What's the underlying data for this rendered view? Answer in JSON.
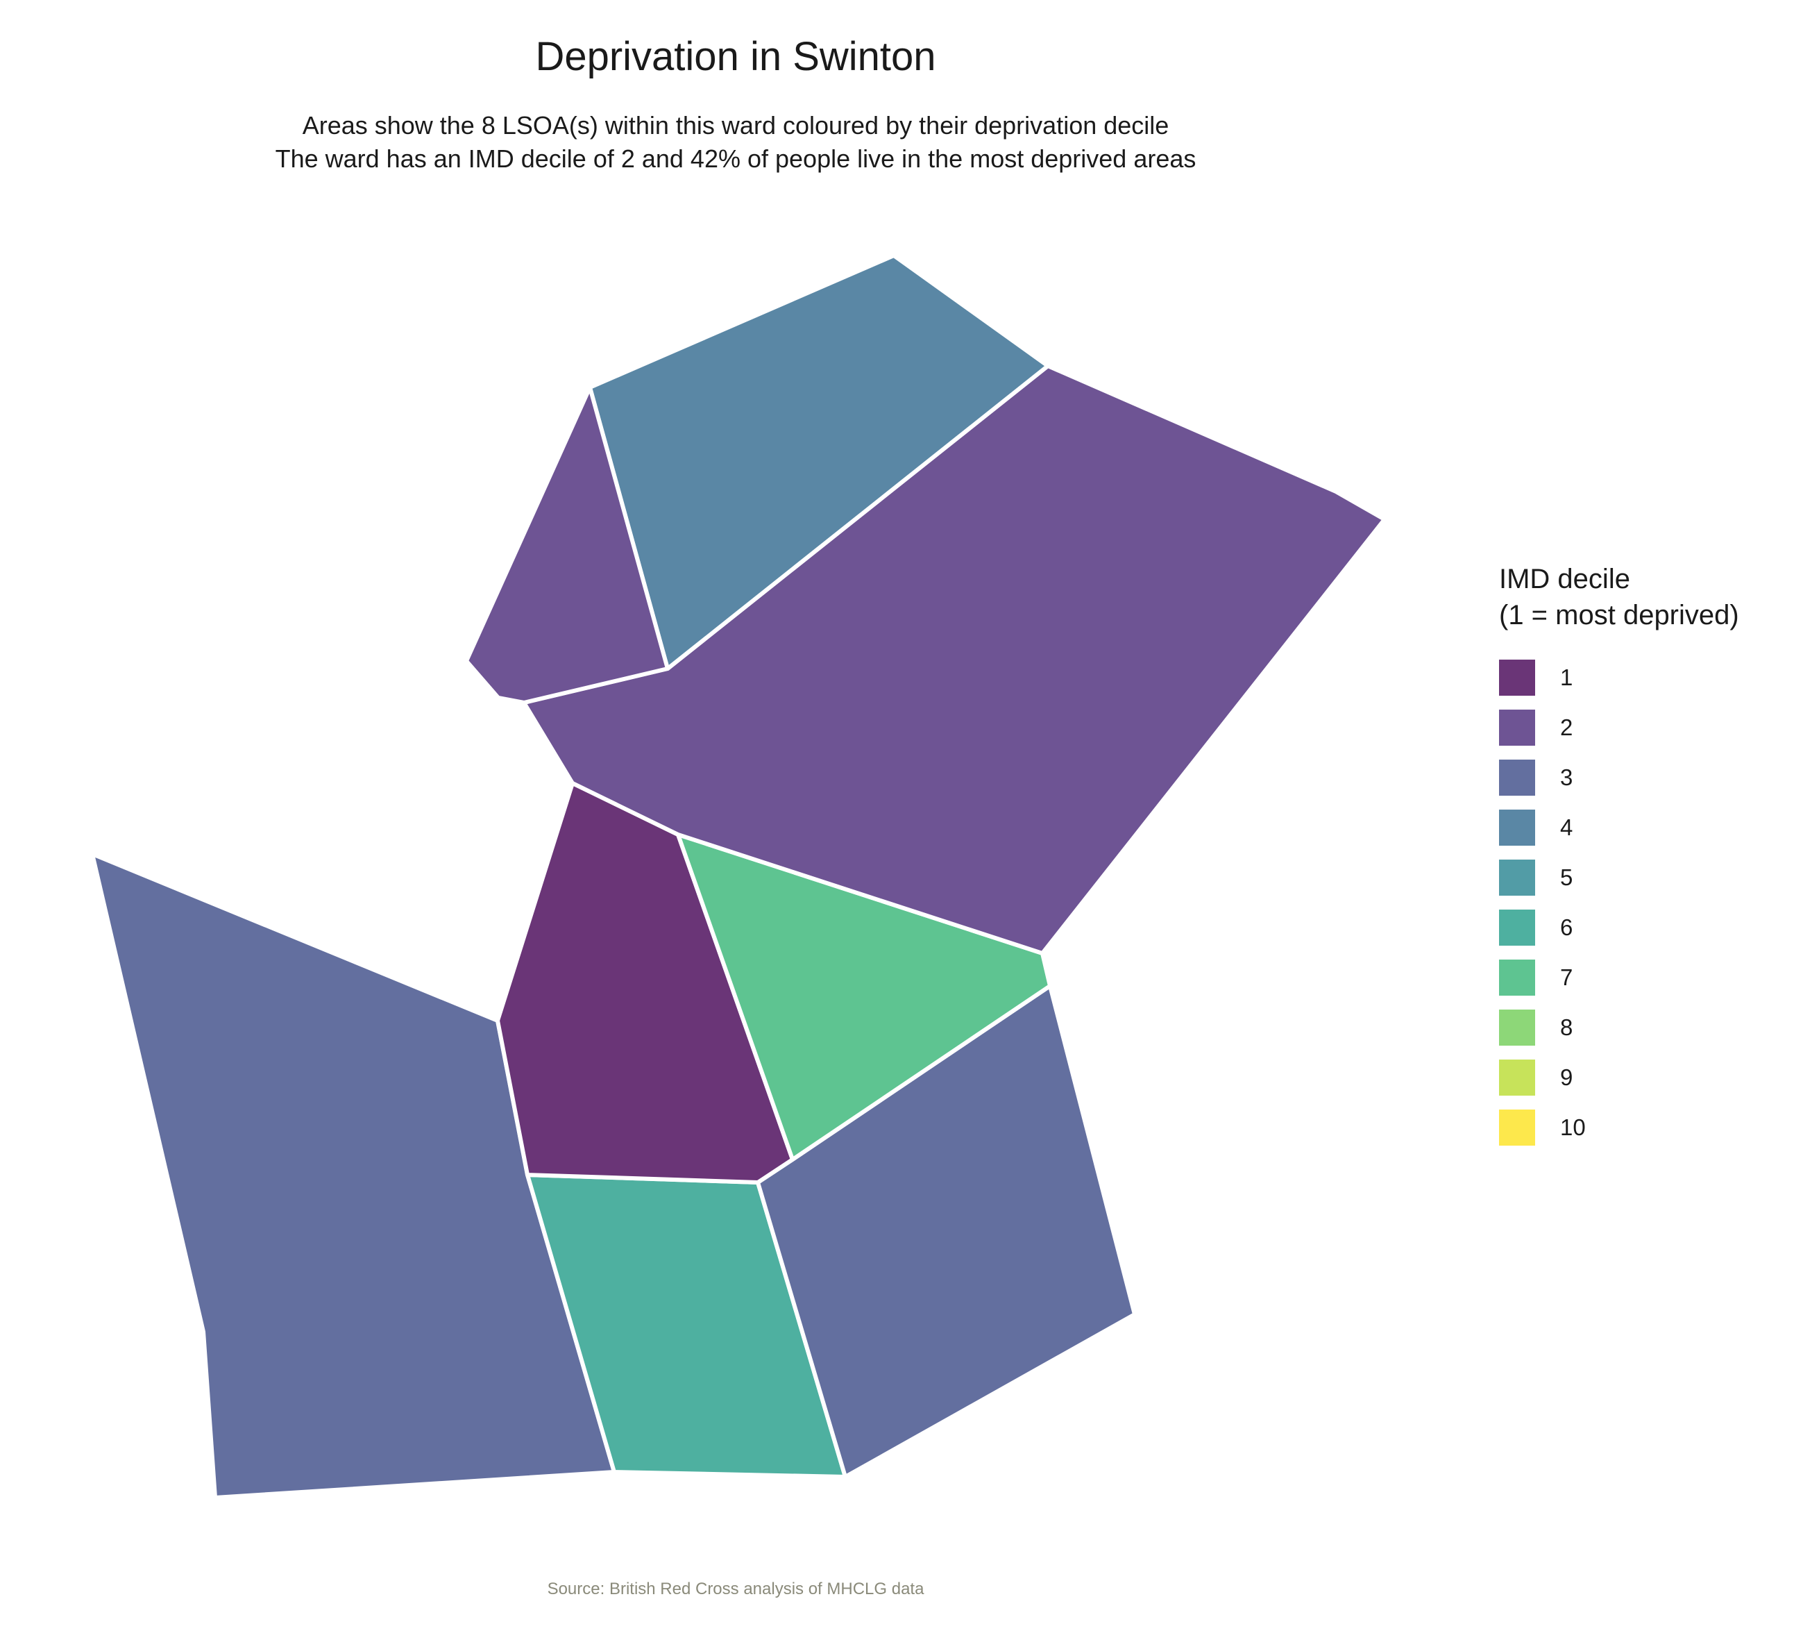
{
  "title": "Deprivation in Swinton",
  "subtitle_line1": "Areas show the 8 LSOA(s) within this ward coloured by their deprivation decile",
  "subtitle_line2": "The ward has an IMD decile of 2 and 42% of people live in the most deprived areas",
  "caption": "Source: British Red Cross analysis of MHCLG data",
  "legend": {
    "title_line1": "IMD decile",
    "title_line2": "(1 = most deprived)",
    "items": [
      {
        "label": "1",
        "color": "#6a3577"
      },
      {
        "label": "2",
        "color": "#6e5494"
      },
      {
        "label": "3",
        "color": "#636f9f"
      },
      {
        "label": "4",
        "color": "#5a87a5"
      },
      {
        "label": "5",
        "color": "#529ca6"
      },
      {
        "label": "6",
        "color": "#4eb0a0"
      },
      {
        "label": "7",
        "color": "#5ec491"
      },
      {
        "label": "8",
        "color": "#8dd778"
      },
      {
        "label": "9",
        "color": "#c7e35a"
      },
      {
        "label": "10",
        "color": "#fde84c"
      }
    ]
  },
  "areas": [
    {
      "id": "lsoa-north-west",
      "decile": 2
    },
    {
      "id": "lsoa-north",
      "decile": 4
    },
    {
      "id": "lsoa-north-east",
      "decile": 2
    },
    {
      "id": "lsoa-centre",
      "decile": 1
    },
    {
      "id": "lsoa-centre-east",
      "decile": 7
    },
    {
      "id": "lsoa-west",
      "decile": 3
    },
    {
      "id": "lsoa-south",
      "decile": 6
    },
    {
      "id": "lsoa-south-east",
      "decile": 3
    }
  ]
}
